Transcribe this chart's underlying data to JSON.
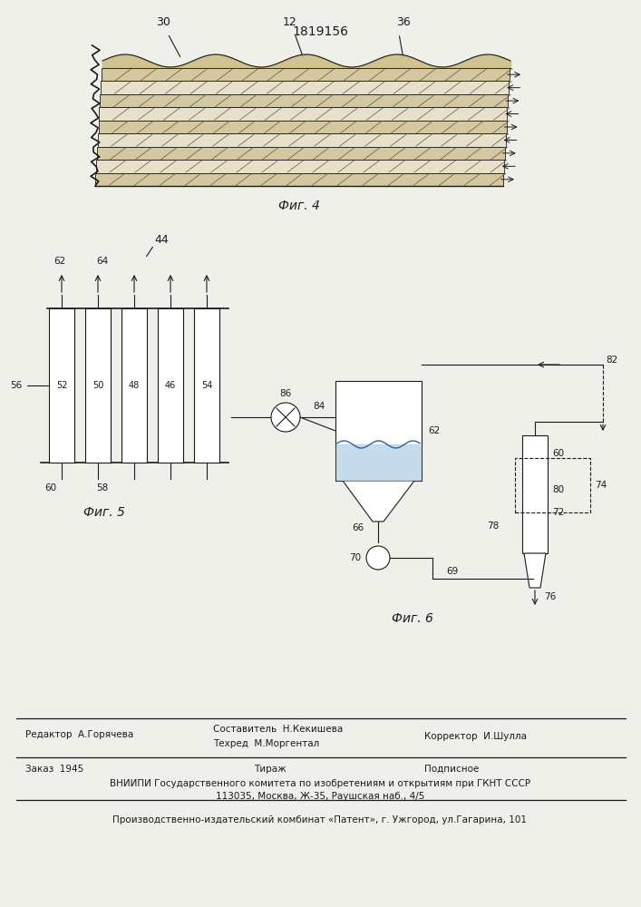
{
  "patent_number": "1819156",
  "background_color": "#f0f0eb",
  "text_color": "#1a1a1a",
  "fig4_label": "Фиг. 4",
  "fig5_label": "Фиг. 5",
  "fig6_label": "Фиг. 6",
  "footer_ed_left": "Редактор  А.Горячева",
  "footer_comp": "Составитель  Н.Кекишева",
  "footer_tech": "Техред  М.Моргентал",
  "footer_corr": "Корректор  И.Шулла",
  "footer_order": "Заказ  1945",
  "footer_tirazh": "Тираж",
  "footer_podp": "Подписное",
  "footer_vniip": "ВНИИПИ Государственного комитета по изобретениям и открытиям при ГКНТ СССР",
  "footer_addr": "113035, Москва, Ж-35, Раушская наб., 4/5",
  "footer_pub": "Производственно-издательский комбинат «Патент», г. Ужгород, ул.Гагарина, 101"
}
